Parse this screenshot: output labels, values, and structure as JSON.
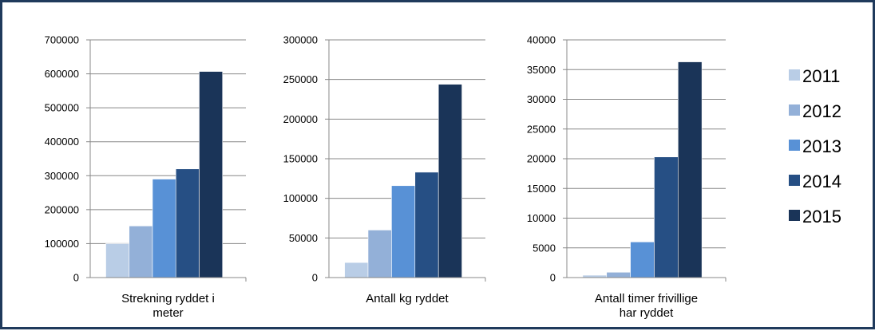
{
  "colors": {
    "series": [
      "#b9cde6",
      "#93b0d8",
      "#5891d6",
      "#264f84",
      "#1a3458"
    ],
    "grid": "#888888",
    "frame": "#1f3a5c"
  },
  "chart_data": [
    {
      "type": "bar",
      "categories": [
        "Strekning ryddet i meter"
      ],
      "category_lines": [
        "Strekning ryddet i",
        "meter"
      ],
      "series": [
        {
          "name": "2011",
          "values": [
            100000
          ]
        },
        {
          "name": "2012",
          "values": [
            152000
          ]
        },
        {
          "name": "2013",
          "values": [
            290000
          ]
        },
        {
          "name": "2014",
          "values": [
            320000
          ]
        },
        {
          "name": "2015",
          "values": [
            607000
          ]
        }
      ],
      "ylim": [
        0,
        700000
      ],
      "yticks": [
        0,
        100000,
        200000,
        300000,
        400000,
        500000,
        600000,
        700000
      ],
      "ytick_labels": [
        "0",
        "100000",
        "200000",
        "300000",
        "400000",
        "500000",
        "600000",
        "700000"
      ],
      "grid": true
    },
    {
      "type": "bar",
      "categories": [
        "Antall kg ryddet"
      ],
      "category_lines": [
        "Antall kg ryddet"
      ],
      "series": [
        {
          "name": "2011",
          "values": [
            19000
          ]
        },
        {
          "name": "2012",
          "values": [
            60000
          ]
        },
        {
          "name": "2013",
          "values": [
            116000
          ]
        },
        {
          "name": "2014",
          "values": [
            133000
          ]
        },
        {
          "name": "2015",
          "values": [
            244000
          ]
        }
      ],
      "ylim": [
        0,
        300000
      ],
      "yticks": [
        0,
        50000,
        100000,
        150000,
        200000,
        250000,
        300000
      ],
      "ytick_labels": [
        "0",
        "50000",
        "100000",
        "150000",
        "200000",
        "250000",
        "300000"
      ],
      "grid": true
    },
    {
      "type": "bar",
      "categories": [
        "Antall timer frivillige har ryddet"
      ],
      "category_lines": [
        "Antall timer frivillige",
        "har ryddet"
      ],
      "series": [
        {
          "name": "2011",
          "values": [
            400
          ]
        },
        {
          "name": "2012",
          "values": [
            900
          ]
        },
        {
          "name": "2013",
          "values": [
            6000
          ]
        },
        {
          "name": "2014",
          "values": [
            20300
          ]
        },
        {
          "name": "2015",
          "values": [
            36300
          ]
        }
      ],
      "ylim": [
        0,
        40000
      ],
      "yticks": [
        0,
        5000,
        10000,
        15000,
        20000,
        25000,
        30000,
        35000,
        40000
      ],
      "ytick_labels": [
        "0",
        "5000",
        "10000",
        "15000",
        "20000",
        "25000",
        "30000",
        "35000",
        "40000"
      ],
      "grid": true
    }
  ],
  "legend": {
    "placement": "right",
    "entries": [
      "2011",
      "2012",
      "2013",
      "2014",
      "2015"
    ]
  }
}
